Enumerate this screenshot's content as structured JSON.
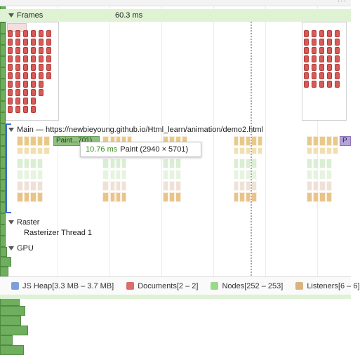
{
  "frames": {
    "label": "Frames",
    "duration": "60.3 ms"
  },
  "main_track": {
    "label": "Main — https://newbieyoung.github.io/Html_learn/animation/demo2.html",
    "paint_block_label": "Paint...701)",
    "trailing_block_label": "P"
  },
  "tooltip": {
    "time": "10.76 ms",
    "text": "Paint (2940 × 5701)"
  },
  "raster": {
    "label": "Raster",
    "thread_label": "Rasterizer Thread 1"
  },
  "gpu": {
    "label": "GPU"
  },
  "legend": [
    {
      "label": "JS Heap[3.3 MB – 3.7 MB]",
      "color": "#7f9fd9"
    },
    {
      "label": "Documents[2 – 2]",
      "color": "#d96e6a"
    },
    {
      "label": "Nodes[252 – 253]",
      "color": "#9bd98a"
    },
    {
      "label": "Listeners[6 – 6]",
      "color": "#d9b482"
    }
  ],
  "colors": {
    "frame_bar": "#dff2d4",
    "raster_green": "#6fae5e",
    "paint_green": "#8fbf7f",
    "script_yellow": "#e8c98a",
    "selection_blue": "#3b6fd1"
  },
  "menu_icon": "more-dots-icon"
}
